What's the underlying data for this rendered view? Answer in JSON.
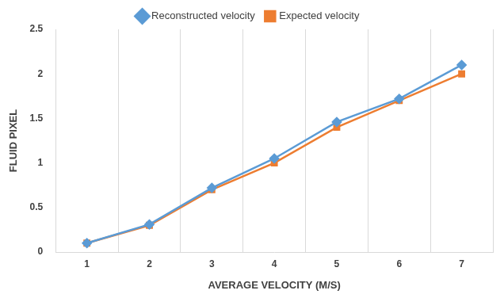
{
  "chart_data": {
    "type": "line",
    "x_label": "AVERAGE VELOCITY (M/S)",
    "y_label": "FLUID PIXEL",
    "categories": [
      "1",
      "2",
      "3",
      "4",
      "5",
      "6",
      "7"
    ],
    "series": [
      {
        "name": "Reconstructed velocity",
        "color": "#5b9bd5",
        "marker": "diamond",
        "values": [
          0.1,
          0.31,
          0.72,
          1.05,
          1.46,
          1.72,
          2.1
        ]
      },
      {
        "name": "Expected velocity",
        "color": "#ed7d31",
        "marker": "square",
        "values": [
          0.1,
          0.3,
          0.7,
          1.0,
          1.4,
          1.7,
          2.0
        ]
      }
    ],
    "ylim": [
      0,
      2.5
    ],
    "yticks": [
      0,
      0.5,
      1,
      1.5,
      2,
      2.5
    ],
    "grid": true,
    "legend": "top"
  }
}
